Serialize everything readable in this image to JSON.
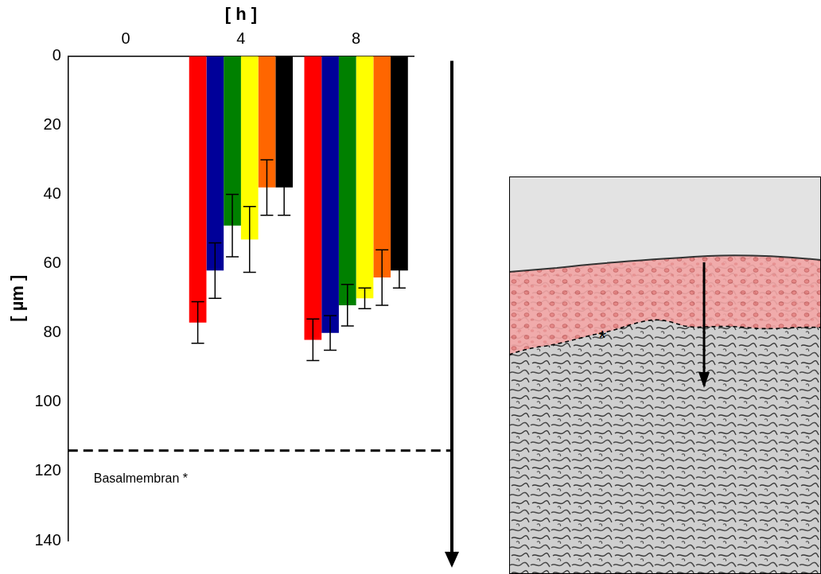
{
  "chart_data": {
    "type": "bar",
    "x_label": "[ h ]",
    "y_label": "[ µm ]",
    "categories": [
      "0",
      "4",
      "8"
    ],
    "series": [
      {
        "color": "#ff0000",
        "values": [
          0,
          77,
          82
        ],
        "errors": [
          0,
          6,
          6
        ]
      },
      {
        "color": "#000099",
        "values": [
          0,
          62,
          80
        ],
        "errors": [
          0,
          8,
          5
        ]
      },
      {
        "color": "#008000",
        "values": [
          0,
          49,
          72
        ],
        "errors": [
          0,
          9,
          6
        ]
      },
      {
        "color": "#ffff00",
        "values": [
          0,
          53,
          70
        ],
        "errors": [
          0,
          9.5,
          3
        ]
      },
      {
        "color": "#ff6600",
        "values": [
          0,
          38,
          64
        ],
        "errors": [
          0,
          8,
          8
        ]
      },
      {
        "color": "#000000",
        "values": [
          0,
          38,
          62
        ],
        "errors": [
          0,
          8,
          5
        ]
      }
    ],
    "ylim": [
      140,
      0
    ],
    "yticks": [
      0,
      20,
      40,
      60,
      80,
      100,
      120,
      140
    ],
    "grid": false,
    "annotations": [
      {
        "text": "Basalmembran *",
        "y": 114,
        "line_style": "dashed"
      }
    ]
  },
  "micrograph": {
    "annotation": "*"
  }
}
